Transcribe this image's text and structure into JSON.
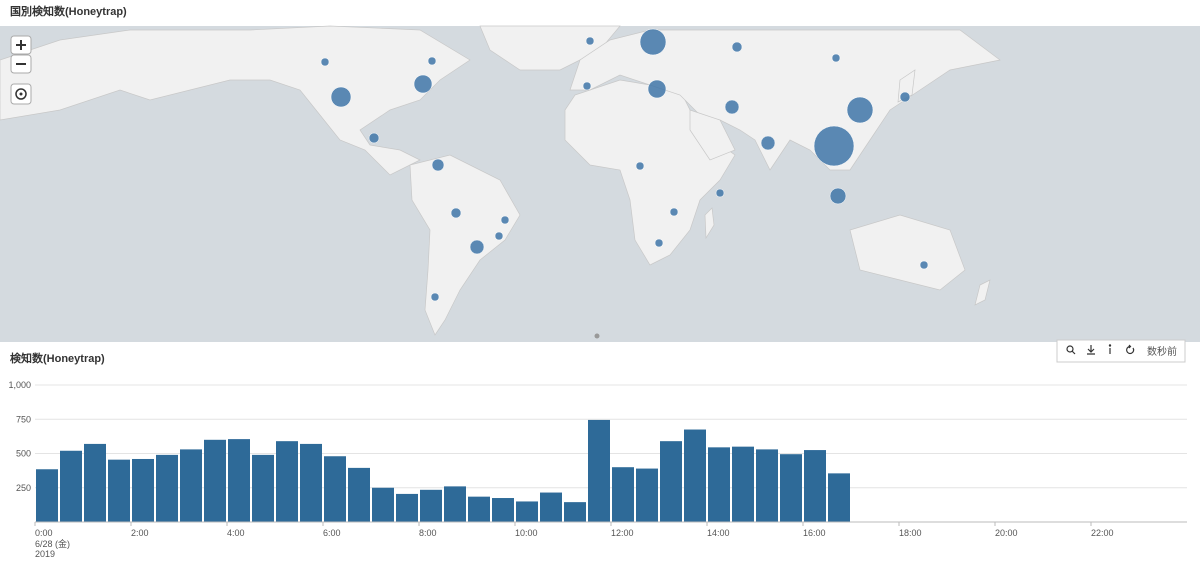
{
  "map_panel": {
    "title": "国別検知数(Honeytrap)"
  },
  "chart_panel": {
    "title": "検知数(Honeytrap)",
    "refresh_label": "数秒前"
  },
  "chart_data": {
    "type": "histogram",
    "color": "#2e6a98",
    "bins": [
      0,
      0.5,
      1,
      1.5,
      2,
      2.5,
      3,
      3.5,
      4,
      4.5,
      5,
      5.5,
      6,
      6.5,
      7,
      7.5,
      8,
      8.5,
      9,
      9.5,
      10,
      10.5,
      11,
      11.5,
      12,
      12.5,
      13,
      13.5,
      14,
      14.5,
      15,
      15.5,
      16,
      16.5,
      17
    ],
    "values": [
      385,
      520,
      570,
      455,
      460,
      490,
      530,
      600,
      605,
      490,
      590,
      570,
      480,
      395,
      250,
      205,
      235,
      260,
      185,
      175,
      150,
      215,
      145,
      745,
      400,
      390,
      590,
      675,
      545,
      550,
      530,
      495,
      525,
      355
    ],
    "xlim": [
      0,
      24
    ],
    "xticks": [
      {
        "value": 0,
        "label": "0:00"
      },
      {
        "value": 2,
        "label": "2:00"
      },
      {
        "value": 4,
        "label": "4:00"
      },
      {
        "value": 6,
        "label": "6:00"
      },
      {
        "value": 8,
        "label": "8:00"
      },
      {
        "value": 10,
        "label": "10:00"
      },
      {
        "value": 12,
        "label": "12:00"
      },
      {
        "value": 14,
        "label": "14:00"
      },
      {
        "value": 16,
        "label": "16:00"
      },
      {
        "value": 18,
        "label": "18:00"
      },
      {
        "value": 20,
        "label": "20:00"
      },
      {
        "value": 22,
        "label": "22:00"
      }
    ],
    "x_start_labels": [
      "6/28 (金)",
      "2019"
    ],
    "ylim": [
      0,
      1000
    ],
    "yticks": [
      250,
      500,
      750,
      {
        "value": 1000,
        "label": "1,000"
      }
    ],
    "grid": true
  }
}
